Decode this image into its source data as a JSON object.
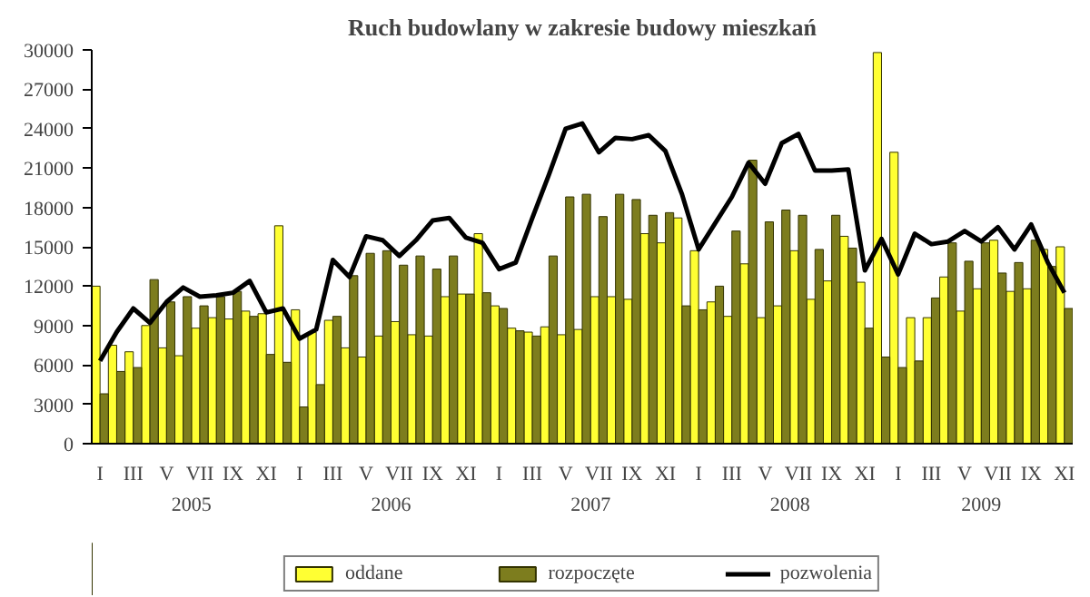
{
  "chart_data": {
    "type": "bar",
    "title": "Ruch budowlany w zakresie budowy mieszkań",
    "categories": [
      "I",
      null,
      "III",
      null,
      "V",
      null,
      "VII",
      null,
      "IX",
      null,
      "XI",
      null,
      "I",
      null,
      "III",
      null,
      "V",
      null,
      "VII",
      null,
      "IX",
      null,
      "XI",
      null,
      "I",
      null,
      "III",
      null,
      "V",
      null,
      "VII",
      null,
      "IX",
      null,
      "XI",
      null,
      "I",
      null,
      "III",
      null,
      "V",
      null,
      "VII",
      null,
      "IX",
      null,
      "XI",
      null,
      "I",
      null,
      "III",
      null,
      "V",
      null,
      "VII",
      null,
      "IX",
      null,
      "XI"
    ],
    "series": [
      {
        "name": "oddane",
        "color": "#ffff33",
        "values": [
          12000,
          7500,
          7000,
          9000,
          7300,
          6700,
          8800,
          9600,
          9500,
          10100,
          9900,
          16600,
          10200,
          8500,
          9400,
          7300,
          6600,
          8200,
          9300,
          8300,
          8200,
          11200,
          11400,
          16000,
          10500,
          8800,
          8500,
          8900,
          8300,
          8700,
          11200,
          11200,
          11000,
          16000,
          15300,
          17200,
          14700,
          10800,
          9700,
          13700,
          9600,
          10500,
          14700,
          11000,
          12400,
          15800,
          12300,
          29800,
          22200,
          9600,
          9600,
          12700,
          10100,
          11800,
          15500,
          11600,
          11800,
          14800,
          15000
        ]
      },
      {
        "name": "rozpoczęte",
        "color": "#7d7d1e",
        "values": [
          3800,
          5500,
          5800,
          12500,
          10800,
          11200,
          10500,
          11200,
          11600,
          9700,
          6800,
          6200,
          2800,
          4500,
          9700,
          12800,
          14500,
          14700,
          13600,
          14300,
          13300,
          14300,
          11400,
          11500,
          10300,
          8600,
          8200,
          14300,
          18800,
          19000,
          17300,
          19000,
          18600,
          17400,
          17600,
          10500,
          10200,
          12000,
          16200,
          21600,
          16900,
          17800,
          17400,
          14800,
          17400,
          14900,
          8800,
          6600,
          5800,
          6300,
          11100,
          15300,
          13900,
          15300,
          13000,
          13800,
          15500,
          13500,
          10300
        ]
      },
      {
        "name": "pozwolenia",
        "type": "line",
        "color": "#000000",
        "values": [
          6300,
          8500,
          10300,
          9200,
          10800,
          11900,
          11200,
          11300,
          11500,
          12400,
          10000,
          10300,
          8000,
          8700,
          14000,
          12700,
          15800,
          15500,
          14300,
          15500,
          17000,
          17200,
          15700,
          15300,
          13300,
          13800,
          17200,
          20500,
          24000,
          24400,
          22200,
          23300,
          23200,
          23500,
          22300,
          19000,
          14800,
          16800,
          18800,
          21400,
          19800,
          22900,
          23600,
          20800,
          20800,
          20900,
          13200,
          15600,
          12900,
          16000,
          15200,
          15400,
          16200,
          15400,
          16500,
          14800,
          16700,
          13800,
          11500
        ]
      }
    ],
    "annotations": [
      "2005",
      "2006",
      "2007",
      "2008",
      "2009"
    ],
    "ylim": [
      0,
      30000
    ],
    "yticks": [
      0,
      3000,
      6000,
      9000,
      12000,
      15000,
      18000,
      21000,
      24000,
      27000,
      30000
    ],
    "grid": false,
    "legend": "bottom"
  }
}
